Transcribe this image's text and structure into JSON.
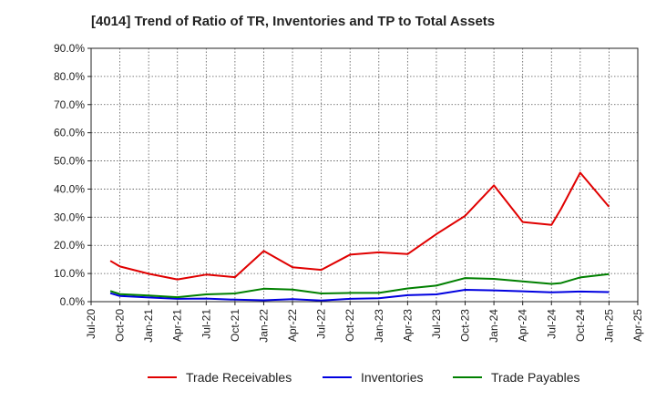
{
  "chart_data": {
    "type": "line",
    "title": "[4014]  Trend of Ratio of TR, Inventories and TP to Total Assets",
    "xlabel": "",
    "ylabel": "",
    "x_tick_labels": [
      "Jul-20",
      "Oct-20",
      "Jan-21",
      "Apr-21",
      "Jul-21",
      "Oct-21",
      "Jan-22",
      "Apr-22",
      "Jul-22",
      "Oct-22",
      "Jan-23",
      "Apr-23",
      "Jul-23",
      "Oct-23",
      "Jan-24",
      "Apr-24",
      "Jul-24",
      "Oct-24",
      "Jan-25",
      "Apr-25"
    ],
    "y_tick_labels": [
      "0.0%",
      "10.0%",
      "20.0%",
      "30.0%",
      "40.0%",
      "50.0%",
      "60.0%",
      "70.0%",
      "80.0%",
      "90.0%"
    ],
    "ylim": [
      0,
      90
    ],
    "grid": true,
    "legend_position": "bottom",
    "x": [
      "Sep-20",
      "Oct-20",
      "Jan-21",
      "Apr-21",
      "Jul-21",
      "Oct-21",
      "Jan-22",
      "Apr-22",
      "Jul-22",
      "Oct-22",
      "Jan-23",
      "Apr-23",
      "Jul-23",
      "Oct-23",
      "Jan-24",
      "Apr-24",
      "Jul-24",
      "Aug-24",
      "Oct-24",
      "Jan-25"
    ],
    "series": [
      {
        "name": "Trade Receivables",
        "color": "#e00000",
        "values": [
          14.5,
          12.5,
          9.9,
          7.9,
          9.6,
          8.7,
          18.0,
          12.2,
          11.3,
          16.7,
          17.5,
          16.9,
          24.0,
          30.5,
          41.3,
          28.3,
          27.3,
          33.0,
          45.8,
          33.7
        ]
      },
      {
        "name": "Inventories",
        "color": "#0000e0",
        "values": [
          3.0,
          2.0,
          1.5,
          1.0,
          1.1,
          0.7,
          0.5,
          0.9,
          0.4,
          1.0,
          1.2,
          2.3,
          2.6,
          4.2,
          4.0,
          3.7,
          3.3,
          3.4,
          3.6,
          3.4
        ]
      },
      {
        "name": "Trade Payables",
        "color": "#008000",
        "values": [
          3.8,
          2.7,
          2.2,
          1.6,
          2.6,
          2.9,
          4.6,
          4.3,
          2.9,
          3.1,
          3.1,
          4.7,
          5.7,
          8.4,
          8.1,
          7.2,
          6.3,
          6.6,
          8.6,
          9.8
        ]
      }
    ]
  }
}
